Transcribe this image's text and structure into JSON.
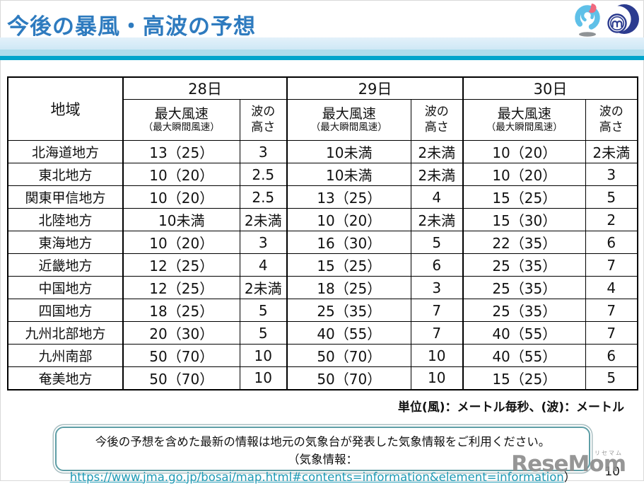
{
  "header": {
    "title": "今後の暴風・高波の予想"
  },
  "table": {
    "region_header": "地域",
    "wind_header": "最大風速",
    "wind_subheader": "（最大瞬間風速）",
    "wave_header_line1": "波の",
    "wave_header_line2": "高さ",
    "day_groups": [
      {
        "date": "28日"
      },
      {
        "date": "29日"
      },
      {
        "date": "30日"
      }
    ],
    "rows": [
      {
        "region": "北海道地方",
        "days": [
          {
            "wind": "13（25）",
            "wave": "3"
          },
          {
            "wind": "10未満",
            "wave": "2未満"
          },
          {
            "wind": "10（20）",
            "wave": "2未満"
          }
        ]
      },
      {
        "region": "東北地方",
        "days": [
          {
            "wind": "10（20）",
            "wave": "2.5"
          },
          {
            "wind": "10未満",
            "wave": "2未満"
          },
          {
            "wind": "10（20）",
            "wave": "3"
          }
        ]
      },
      {
        "region": "関東甲信地方",
        "days": [
          {
            "wind": "10（20）",
            "wave": "2.5"
          },
          {
            "wind": "13（25）",
            "wave": "4"
          },
          {
            "wind": "15（25）",
            "wave": "5"
          }
        ]
      },
      {
        "region": "北陸地方",
        "days": [
          {
            "wind": "10未満",
            "wave": "2未満"
          },
          {
            "wind": "10（20）",
            "wave": "2未満"
          },
          {
            "wind": "15（30）",
            "wave": "2"
          }
        ]
      },
      {
        "region": "東海地方",
        "days": [
          {
            "wind": "10（20）",
            "wave": "3"
          },
          {
            "wind": "16（30）",
            "wave": "5"
          },
          {
            "wind": "22（35）",
            "wave": "6"
          }
        ]
      },
      {
        "region": "近畿地方",
        "days": [
          {
            "wind": "12（25）",
            "wave": "4"
          },
          {
            "wind": "15（25）",
            "wave": "6"
          },
          {
            "wind": "25（35）",
            "wave": "7"
          }
        ]
      },
      {
        "region": "中国地方",
        "days": [
          {
            "wind": "12（25）",
            "wave": "2未満"
          },
          {
            "wind": "18（25）",
            "wave": "3"
          },
          {
            "wind": "25（35）",
            "wave": "4"
          }
        ]
      },
      {
        "region": "四国地方",
        "days": [
          {
            "wind": "18（25）",
            "wave": "5"
          },
          {
            "wind": "25（35）",
            "wave": "7"
          },
          {
            "wind": "25（35）",
            "wave": "7"
          }
        ]
      },
      {
        "region": "九州北部地方",
        "days": [
          {
            "wind": "20（30）",
            "wave": "5"
          },
          {
            "wind": "40（55）",
            "wave": "7"
          },
          {
            "wind": "40（55）",
            "wave": "7"
          }
        ]
      },
      {
        "region": "九州南部",
        "days": [
          {
            "wind": "50（70）",
            "wave": "10"
          },
          {
            "wind": "50（70）",
            "wave": "10"
          },
          {
            "wind": "40（55）",
            "wave": "6"
          }
        ]
      },
      {
        "region": "奄美地方",
        "days": [
          {
            "wind": "50（70）",
            "wave": "10"
          },
          {
            "wind": "50（70）",
            "wave": "10"
          },
          {
            "wind": "15（25）",
            "wave": "5"
          }
        ]
      }
    ]
  },
  "unit_note": "単位(風)：メートル毎秒、(波)：メートル",
  "notice": {
    "line1": "今後の予想を含めた最新の情報は地元の気象台が発表した気象情報をご利用ください。",
    "line2_prefix": "（気象情報：",
    "link": "https://www.jma.go.jp/bosai/map.html#contents=information&element=information",
    "line2_suffix": "）"
  },
  "watermark": {
    "text": "ReseMom",
    "ruby": "リセマム"
  },
  "page_number": "10",
  "colors": {
    "title_blue": "#2e7bbf",
    "band_light_blue": "#cfe8f6",
    "band_teal": "#00a5cb",
    "link_teal": "#1e9ab5",
    "notice_border": "#5e9ea6",
    "watermark_gray": "#8e8e8e"
  }
}
